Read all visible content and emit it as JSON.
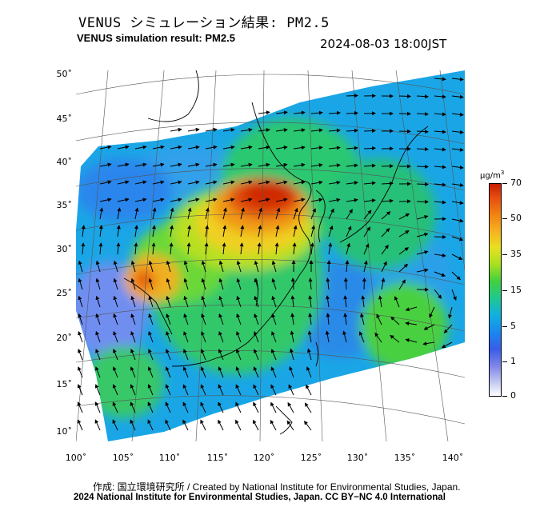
{
  "header": {
    "title_ja": "VENUS シミュレーション結果: PM2.5",
    "title_en": "VENUS simulation result: PM2.5",
    "timestamp": "2024-08-03 18:00JST"
  },
  "axes": {
    "lat_labels": [
      "50˚",
      "45˚",
      "40˚",
      "35˚",
      "30˚",
      "25˚",
      "20˚",
      "15˚",
      "10˚"
    ],
    "lon_labels": [
      "100˚",
      "105˚",
      "110˚",
      "115˚",
      "120˚",
      "125˚",
      "130˚",
      "135˚",
      "140˚"
    ]
  },
  "legend": {
    "unit": "μg/m",
    "unit_sup": "3",
    "ticks": [
      "70",
      "50",
      "35",
      "15",
      "5",
      "1",
      "0"
    ],
    "colors": [
      "#c81e00",
      "#f08010",
      "#e8e020",
      "#40d040",
      "#10b0e0",
      "#3a5ce8",
      "#ffffff"
    ]
  },
  "footer": {
    "credit": "作成: 国立環境研究所 / Created by National Institute for Environmental Studies, Japan.",
    "copyright": "2024 National Institute for Environmental Studies, Japan. CC BY−NC 4.0 International"
  }
}
